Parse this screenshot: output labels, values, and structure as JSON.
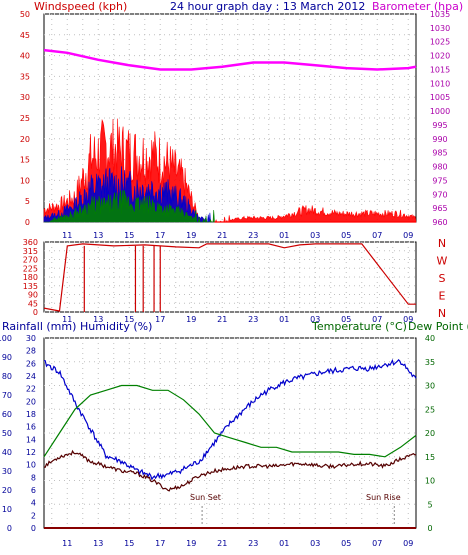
{
  "header": {
    "windspeed_label": "Windspeed (kph)",
    "title": "24 hour graph day : 13 March 2012",
    "barometer_label": "Barometer (hpa)"
  },
  "lower_header": {
    "rainfall_label": "Rainfall (mm)",
    "humidity_label": "Humidity (%)",
    "temperature_label": "Temperature (°C)",
    "dewpoint_label": "Dew Point (°C)"
  },
  "annotations": {
    "sunset": "Sun Set",
    "sunrise": "Sun Rise"
  },
  "colors": {
    "windspeed": "#ff0000",
    "gust": "#0000cc",
    "avg": "#008000",
    "barometer": "#ff00ff",
    "direction": "#cc0000",
    "humidity": "#0000cc",
    "temperature": "#008000",
    "dewpoint": "#550000",
    "rainfall": "#880000",
    "axis_left": "#cc0000",
    "axis_right": "#aa00aa"
  },
  "chart_data": [
    {
      "type": "area",
      "name": "wind_and_pressure",
      "x_ticks": [
        "11",
        "13",
        "15",
        "17",
        "19",
        "21",
        "23",
        "01",
        "03",
        "05",
        "07",
        "09"
      ],
      "x_range_hours": [
        9.5,
        33.5
      ],
      "y_left": {
        "label": "Windspeed (kph)",
        "ticks": [
          0,
          5,
          10,
          15,
          20,
          25,
          30,
          35,
          40,
          45,
          50
        ],
        "range": [
          0,
          50
        ]
      },
      "y_right": {
        "label": "Barometer (hpa)",
        "ticks": [
          960,
          965,
          970,
          975,
          980,
          985,
          990,
          995,
          1000,
          1005,
          1010,
          1015,
          1020,
          1025,
          1030,
          1035
        ],
        "range": [
          960,
          1035
        ]
      },
      "series": [
        {
          "name": "windspeed",
          "x": [
            9.5,
            10.5,
            11.5,
            12.5,
            13.5,
            14.5,
            15.5,
            16.5,
            17.5,
            18.5,
            19.5,
            20.5,
            22.5,
            24.5,
            26.5,
            28.5,
            30.5,
            32.5,
            33.5
          ],
          "y": [
            3,
            4,
            6,
            15,
            18,
            17,
            16,
            16,
            14,
            10,
            1,
            0,
            1,
            1,
            3,
            2,
            2,
            2,
            1
          ]
        },
        {
          "name": "gust",
          "x": [
            9.5,
            10.5,
            11.5,
            12.5,
            13.5,
            14.5,
            15.5,
            16.5,
            17.5,
            18.5,
            19.5,
            20.5
          ],
          "y": [
            1,
            2,
            4,
            8,
            9,
            9,
            8,
            8,
            7,
            5,
            1,
            0
          ]
        },
        {
          "name": "avg",
          "x": [
            9.5,
            10.5,
            11.5,
            12.5,
            13.5,
            14.5,
            15.5,
            16.5,
            17.5,
            18.5,
            19.5,
            20.5
          ],
          "y": [
            0,
            1,
            2,
            4,
            4,
            5,
            4,
            4,
            3,
            2,
            0,
            0
          ]
        },
        {
          "name": "barometer",
          "x": [
            9.5,
            11,
            13,
            15,
            17,
            19,
            21,
            23,
            25,
            27,
            29,
            31,
            33,
            33.5
          ],
          "y": [
            1022,
            1021,
            1018.5,
            1016.5,
            1015,
            1015,
            1016,
            1017.5,
            1017.5,
            1016.5,
            1015.5,
            1015,
            1015.5,
            1016
          ]
        }
      ]
    },
    {
      "type": "line",
      "name": "wind_direction",
      "y_ticks": [
        0,
        45,
        90,
        135,
        180,
        225,
        270,
        315,
        360
      ],
      "cardinals": [
        "N",
        "W",
        "S",
        "E",
        "N"
      ],
      "series": [
        {
          "name": "direction",
          "x": [
            9.5,
            10.5,
            11,
            12,
            14,
            16,
            18,
            19.5,
            20,
            24,
            25,
            26,
            27,
            30,
            33,
            33.5
          ],
          "y": [
            20,
            5,
            340,
            350,
            340,
            345,
            335,
            330,
            350,
            350,
            330,
            345,
            350,
            350,
            40,
            40
          ]
        }
      ]
    },
    {
      "type": "line",
      "name": "temperature_humidity_rain",
      "y_humidity": {
        "ticks": [
          0,
          10,
          20,
          30,
          40,
          50,
          60,
          70,
          80,
          90,
          100
        ],
        "range": [
          0,
          100
        ]
      },
      "y_rainfall": {
        "ticks": [
          0,
          2,
          4,
          6,
          8,
          10,
          12,
          14,
          16,
          18,
          20,
          22,
          24,
          26,
          28,
          30
        ],
        "range": [
          0,
          30
        ]
      },
      "y_temperature": {
        "ticks": [
          0,
          5,
          10,
          15,
          20,
          25,
          30,
          35,
          40
        ],
        "range": [
          0,
          40
        ]
      },
      "series": [
        {
          "name": "humidity",
          "x": [
            9.5,
            10.5,
            11.5,
            12.5,
            13.5,
            14.5,
            15.5,
            16.5,
            17.5,
            18.5,
            19.5,
            20.5,
            21.5,
            22.5,
            23.5,
            24.5,
            25.5,
            26.5,
            27.5,
            28.5,
            29.5,
            30.5,
            31.5,
            32.5,
            33.5
          ],
          "y": [
            87,
            82,
            66,
            52,
            38,
            35,
            30,
            27,
            28,
            31,
            35,
            45,
            55,
            63,
            70,
            75,
            78,
            80,
            82,
            83,
            84,
            84,
            86,
            88,
            78
          ]
        },
        {
          "name": "temperature",
          "x": [
            9.5,
            10.5,
            11.5,
            12.5,
            13.5,
            14.5,
            15.5,
            16.5,
            17.5,
            18.5,
            19.5,
            20.5,
            21.5,
            22.5,
            23.5,
            24.5,
            25.5,
            26.5,
            27.5,
            28.5,
            29.5,
            30.5,
            31.5,
            32.5,
            33.5
          ],
          "y": [
            15,
            20,
            25,
            28,
            29,
            30,
            30,
            29,
            29,
            27,
            24,
            20,
            19,
            18,
            17,
            17,
            16,
            16,
            16,
            16,
            15.5,
            15.5,
            15,
            17,
            19.5
          ]
        },
        {
          "name": "dewpoint",
          "x": [
            9.5,
            10.5,
            11.5,
            12.5,
            13.5,
            14.5,
            15.5,
            16.5,
            17.5,
            18.5,
            19.5,
            20.5,
            21.5,
            22.5,
            23.5,
            24.5,
            25.5,
            26.5,
            27.5,
            28.5,
            29.5,
            30.5,
            31.5,
            32.5,
            33.5
          ],
          "y": [
            13,
            15,
            16,
            14,
            13,
            12,
            11.5,
            10,
            8,
            9,
            11,
            12,
            12.5,
            13,
            13,
            13,
            13.5,
            13.5,
            13,
            13,
            13.5,
            13.5,
            13,
            14.5,
            15.5
          ]
        },
        {
          "name": "rainfall",
          "x": [
            9.5,
            33.5
          ],
          "y": [
            0,
            0
          ]
        }
      ],
      "events": [
        {
          "label": "Sun Set",
          "x": 19.7
        },
        {
          "label": "Sun Rise",
          "x": 32.1
        }
      ]
    }
  ]
}
